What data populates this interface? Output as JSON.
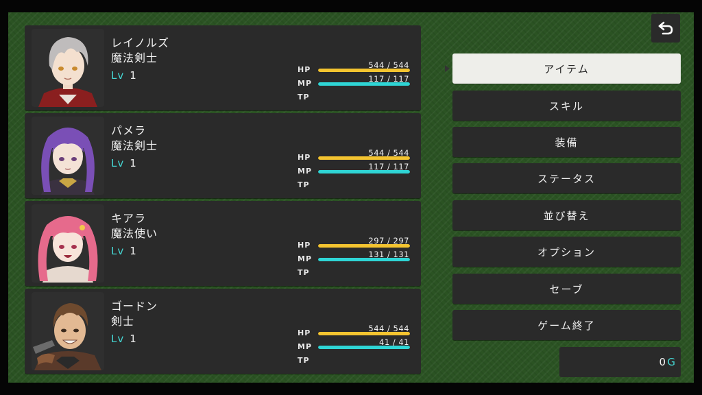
{
  "colors": {
    "hp": "#f4c430",
    "mp": "#2fd5d5",
    "level_tag": "#45d6d3",
    "panel": "#2a2a2a",
    "background": "#2b5323"
  },
  "party": [
    {
      "name": "レイノルズ",
      "class": "魔法剣士",
      "lv_label": "Lv",
      "lv": "1",
      "hp_label": "HP",
      "hp_text": "544 / 544",
      "hp_ratio": 1.0,
      "mp_label": "MP",
      "mp_text": "117 / 117",
      "mp_ratio": 1.0,
      "tp_label": "TP"
    },
    {
      "name": "パメラ",
      "class": "魔法剣士",
      "lv_label": "Lv",
      "lv": "1",
      "hp_label": "HP",
      "hp_text": "544 / 544",
      "hp_ratio": 1.0,
      "mp_label": "MP",
      "mp_text": "117 / 117",
      "mp_ratio": 1.0,
      "tp_label": "TP"
    },
    {
      "name": "キアラ",
      "class": "魔法使い",
      "lv_label": "Lv",
      "lv": "1",
      "hp_label": "HP",
      "hp_text": "297 / 297",
      "hp_ratio": 1.0,
      "mp_label": "MP",
      "mp_text": "131 / 131",
      "mp_ratio": 1.0,
      "tp_label": "TP"
    },
    {
      "name": "ゴードン",
      "class": "剣士",
      "lv_label": "Lv",
      "lv": "1",
      "hp_label": "HP",
      "hp_text": "544 / 544",
      "hp_ratio": 1.0,
      "mp_label": "MP",
      "mp_text": "41 / 41",
      "mp_ratio": 1.0,
      "tp_label": "TP"
    }
  ],
  "menu": [
    {
      "label": "アイテム",
      "selected": true
    },
    {
      "label": "スキル"
    },
    {
      "label": "装備"
    },
    {
      "label": "ステータス"
    },
    {
      "label": "並び替え"
    },
    {
      "label": "オプション"
    },
    {
      "label": "セーブ"
    },
    {
      "label": "ゲーム終了"
    }
  ],
  "gold": {
    "amount": "0",
    "unit": "G"
  },
  "back_icon": "return-arrow-icon"
}
